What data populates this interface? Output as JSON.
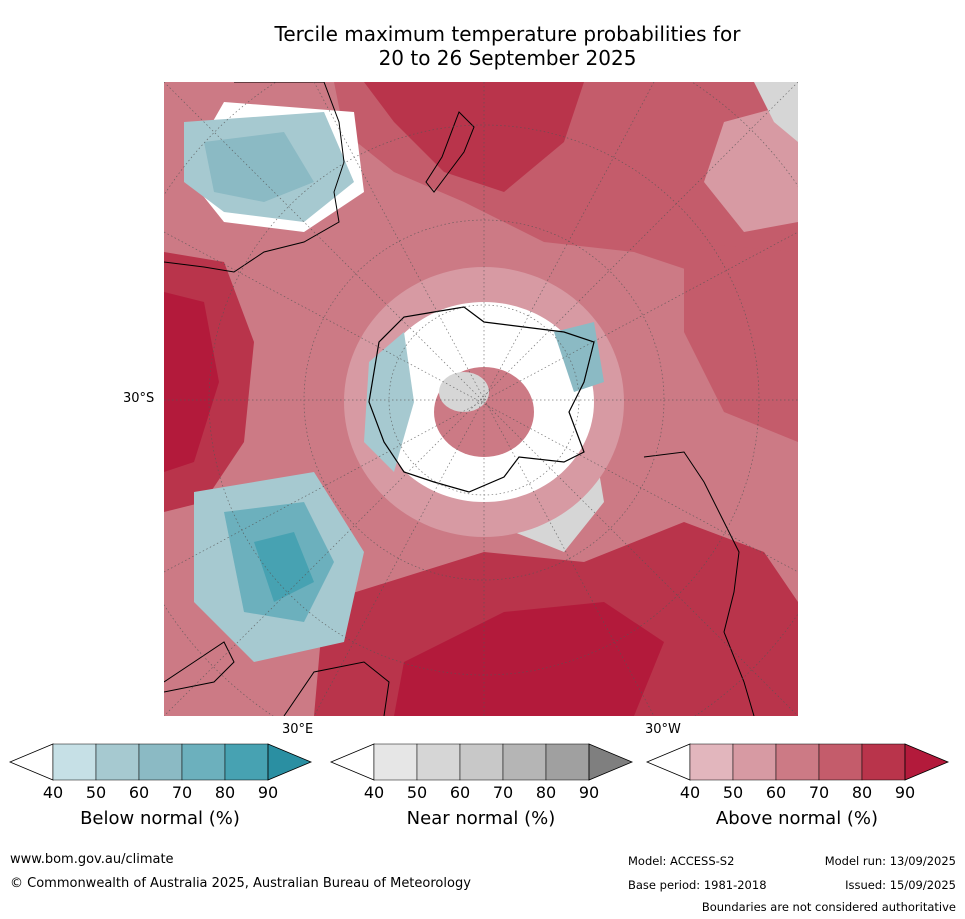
{
  "title": {
    "line1": "Tercile maximum temperature probabilities for",
    "line2": "20 to 26 September 2025"
  },
  "map": {
    "labels": {
      "lat_left": "30°S",
      "lon_bottom_left": "30°E",
      "lon_bottom_right": "30°W"
    },
    "colors": {
      "below": [
        "#ffffff",
        "#c6e0e6",
        "#a6c9d0",
        "#8bbac4",
        "#6cb0bd",
        "#47a2b2",
        "#2a8fa2"
      ],
      "near": [
        "#ffffff",
        "#e6e6e6",
        "#d6d6d6",
        "#c8c8c8",
        "#b5b5b5",
        "#a0a0a0",
        "#7f7f7f"
      ],
      "above": [
        "#ffffff",
        "#e2b6bd",
        "#d79aa3",
        "#cc7a85",
        "#c45c6b",
        "#b9344b",
        "#b31a3b"
      ]
    }
  },
  "colorbars": [
    {
      "title": "Below normal (%)",
      "ticks": [
        "40",
        "50",
        "60",
        "70",
        "80",
        "90"
      ]
    },
    {
      "title": "Near normal (%)",
      "ticks": [
        "40",
        "50",
        "60",
        "70",
        "80",
        "90"
      ]
    },
    {
      "title": "Above normal (%)",
      "ticks": [
        "40",
        "50",
        "60",
        "70",
        "80",
        "90"
      ]
    }
  ],
  "footer": {
    "website": "www.bom.gov.au/climate",
    "copyright": "© Commonwealth of Australia 2025, Australian Bureau of Meteorology",
    "model": "Model: ACCESS-S2",
    "model_run": "Model run: 13/09/2025",
    "base_period": "Base period: 1981-2018",
    "issued": "Issued: 15/09/2025",
    "disclaimer": "Boundaries are not considered authoritative"
  }
}
